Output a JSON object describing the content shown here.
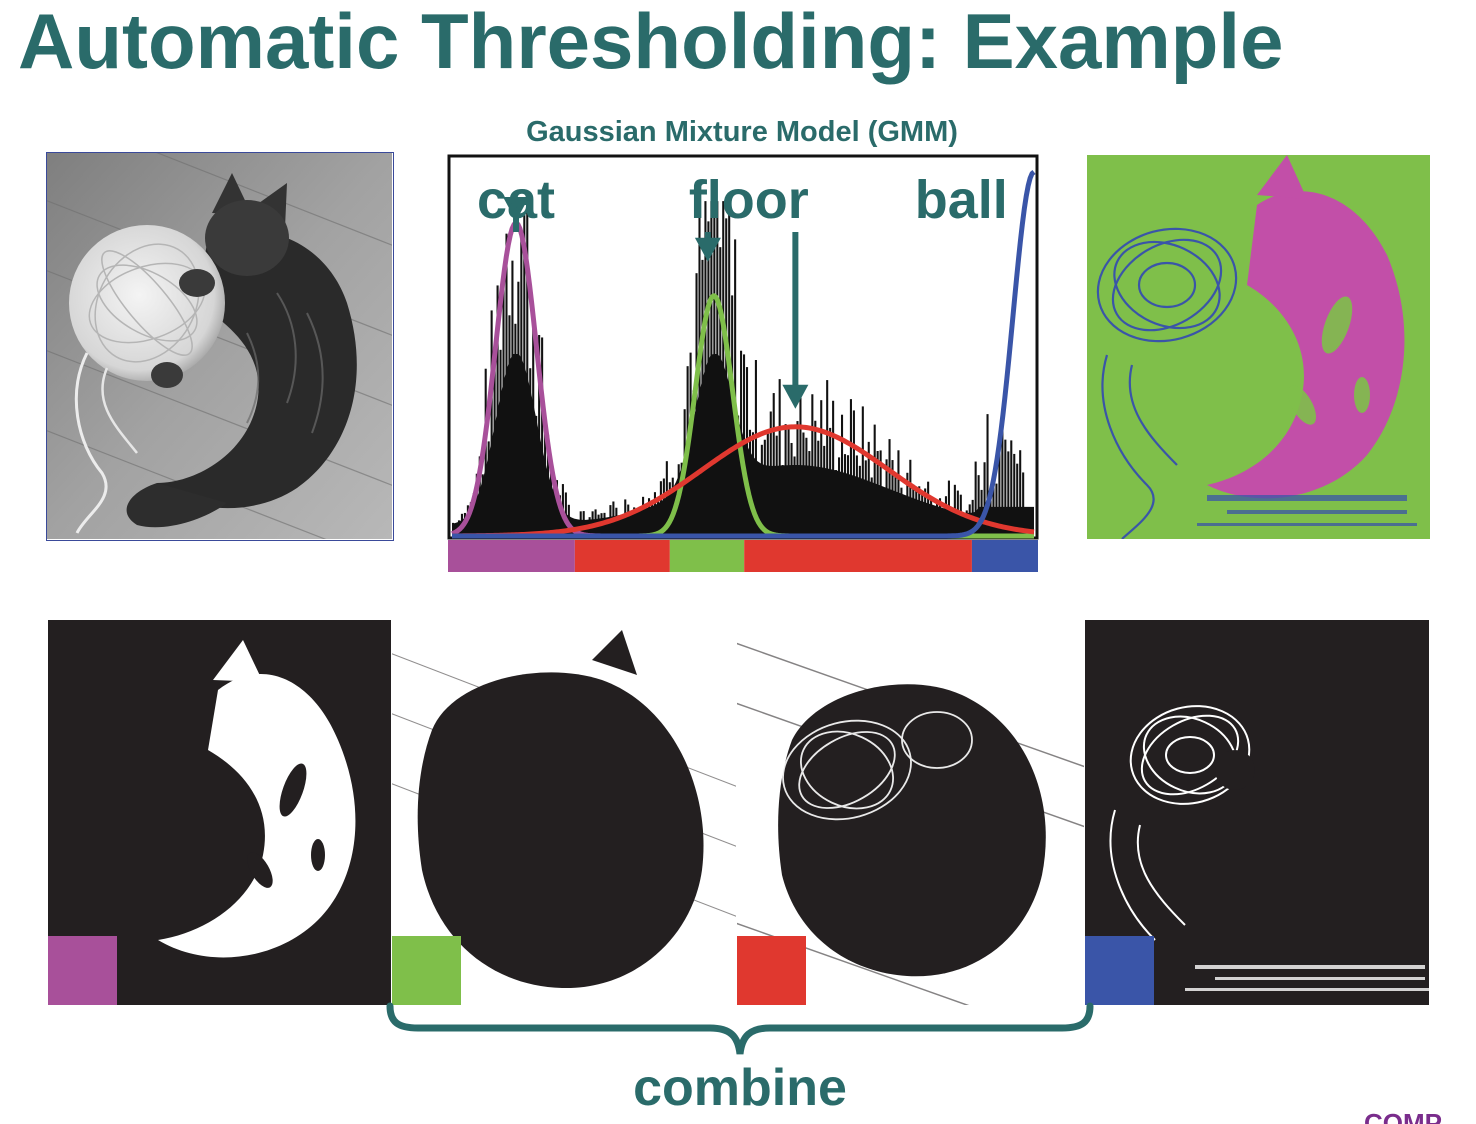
{
  "slide": {
    "title": "Automatic Thresholding: Example",
    "gmm_title": "Gaussian Mixture Model (GMM)",
    "combine_label": "combine",
    "footer_mark": "COMP"
  },
  "colors": {
    "title": "#2a6b6a",
    "cat": "#a8509a",
    "floor_dark": "#e0382f",
    "floor_light": "#7fbf4a",
    "ball": "#3a55a8",
    "mask_bg": "#231f20"
  },
  "chart_data": {
    "type": "histogram",
    "title": "Gaussian Mixture Model (GMM)",
    "annotations": [
      {
        "label": "cat",
        "points_to": "peak-1"
      },
      {
        "label": "floor",
        "points_to": "peak-2-and-3"
      },
      {
        "label": "ball",
        "points_to": "peak-4"
      }
    ],
    "components": [
      {
        "id": "cat",
        "color": "#a8509a",
        "mean": 0.11,
        "sd": 0.035,
        "peak": 0.86
      },
      {
        "id": "floor-light",
        "color": "#7fbf4a",
        "mean": 0.45,
        "sd": 0.032,
        "peak": 0.66
      },
      {
        "id": "floor-dark",
        "color": "#e0382f",
        "mean": 0.59,
        "sd": 0.16,
        "peak": 0.3
      },
      {
        "id": "ball",
        "color": "#3a55a8",
        "mean": 1.0,
        "sd": 0.036,
        "peak": 1.0
      }
    ],
    "class_bands": [
      {
        "color": "#a8509a",
        "from": 0.0,
        "to": 0.215
      },
      {
        "color": "#e0382f",
        "from": 0.215,
        "to": 0.376
      },
      {
        "color": "#7fbf4a",
        "from": 0.376,
        "to": 0.502
      },
      {
        "color": "#e0382f",
        "from": 0.502,
        "to": 0.888
      },
      {
        "color": "#3a55a8",
        "from": 0.888,
        "to": 1.0
      }
    ]
  },
  "masks": [
    {
      "id": "cat-mask",
      "swatch": "#a8509a"
    },
    {
      "id": "floor-light-mask",
      "swatch": "#7fbf4a"
    },
    {
      "id": "floor-dark-mask",
      "swatch": "#e0382f"
    },
    {
      "id": "ball-mask",
      "swatch": "#3a55a8"
    }
  ]
}
